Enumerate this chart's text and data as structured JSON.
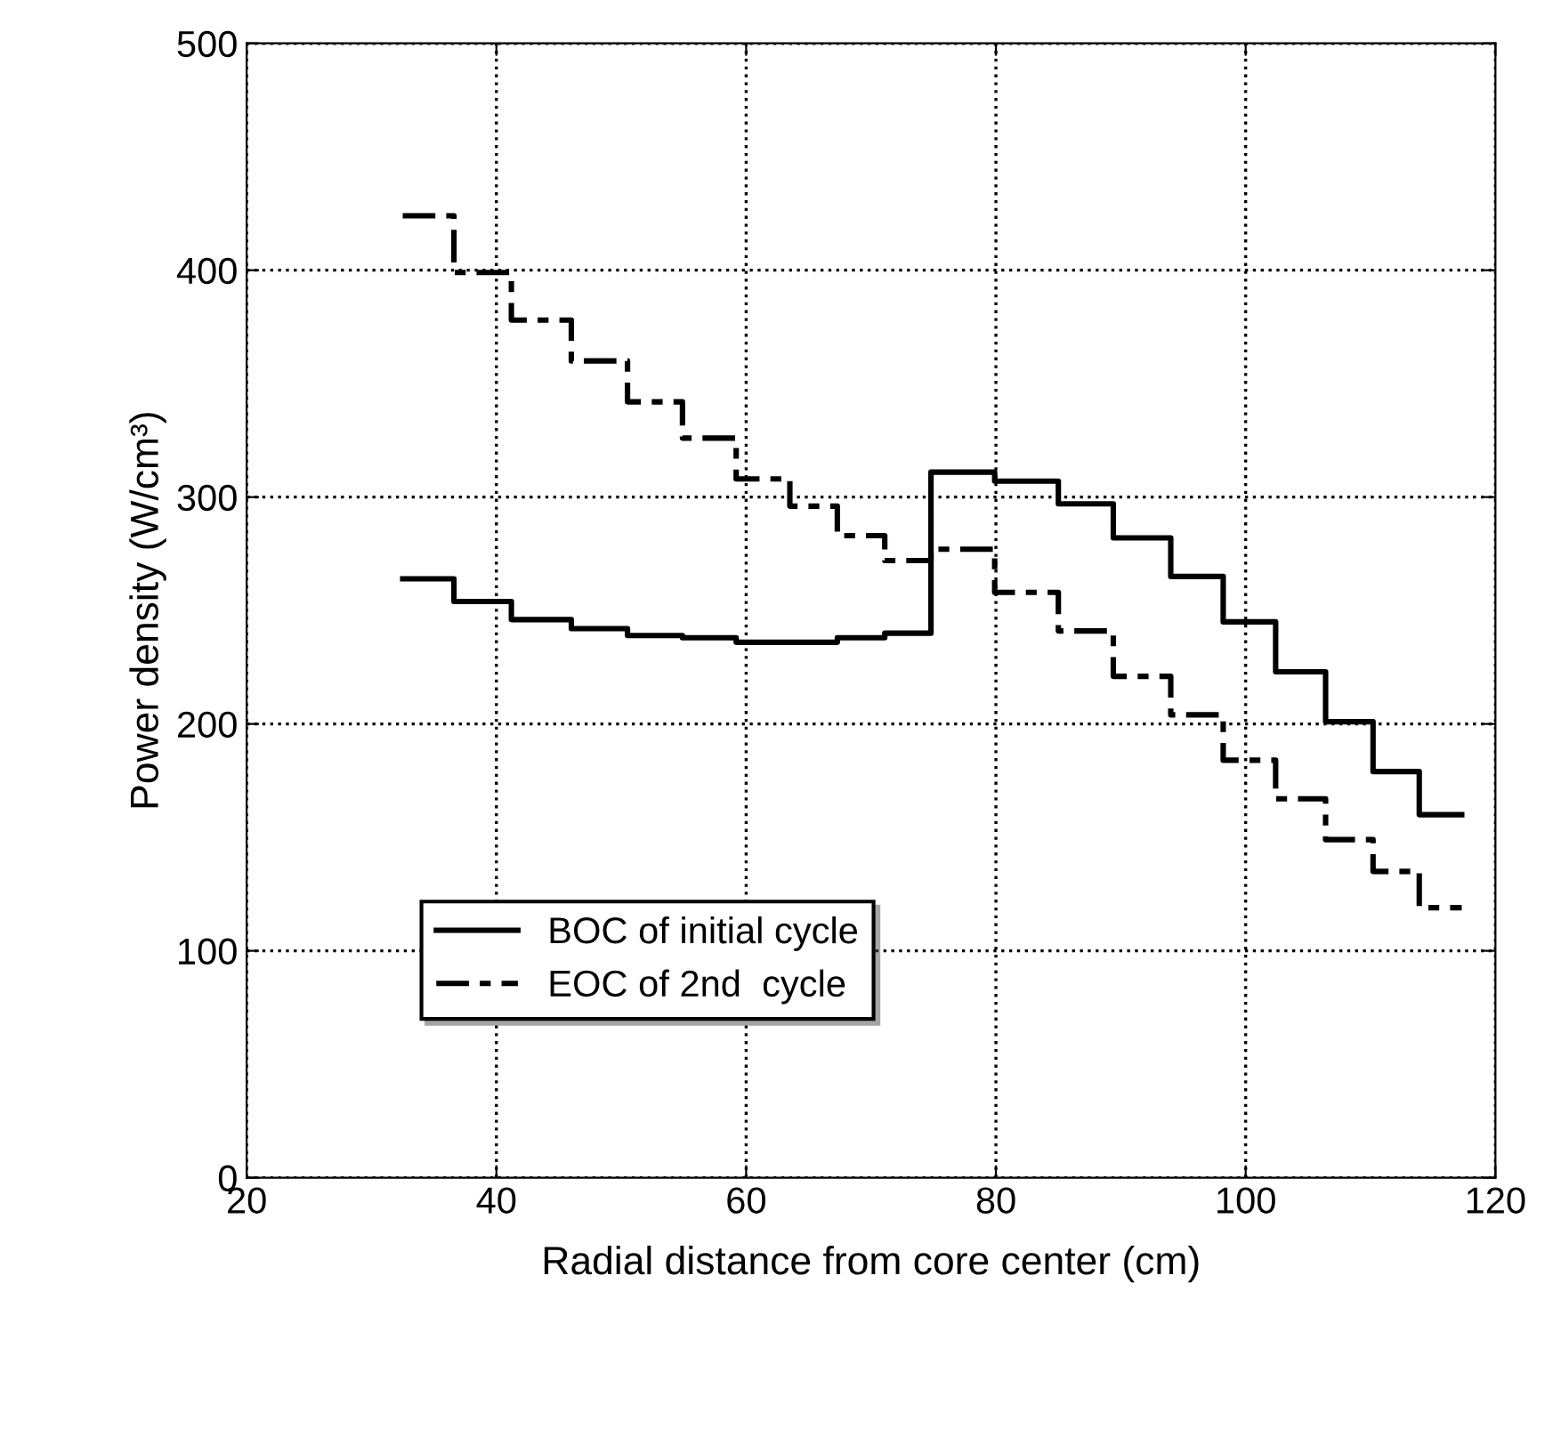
{
  "chart_data": {
    "type": "step",
    "xlabel": "Radial distance from core center (cm)",
    "ylabel": "Power density (W/cm³)",
    "xlim": [
      20,
      120
    ],
    "xticks": [
      20,
      40,
      60,
      80,
      100,
      120
    ],
    "ylim": [
      0,
      500
    ],
    "yticks": [
      0,
      100,
      200,
      300,
      400,
      500
    ],
    "grid": true,
    "legend": "bottom left",
    "marker": "none",
    "series": [
      {
        "name": "BOC of initial cycle",
        "color": "#000000",
        "line_style": "solid",
        "x": [
          32.5,
          36.6,
          41.2,
          46,
          50.5,
          54.9,
          59.2,
          63.5,
          67.3,
          71.1,
          74.8,
          79.9,
          85,
          89.4,
          94,
          98.2,
          102.4,
          106.4,
          110.2,
          113.9,
          117.3
        ],
        "values": [
          264,
          254,
          246,
          242,
          239,
          238,
          236,
          236,
          238,
          240,
          311,
          307,
          297,
          282,
          265,
          245,
          223,
          201,
          179,
          160,
          160
        ]
      },
      {
        "name": "EOC of 2nd  cycle",
        "color": "#000000",
        "line_style": "dashed",
        "x": [
          32.5,
          36.6,
          41.2,
          46,
          50.5,
          54.9,
          59.2,
          63.5,
          67.3,
          71.1,
          74.8,
          79.9,
          85,
          89.4,
          94,
          98.2,
          102.4,
          106.4,
          110.2,
          113.9,
          117.3
        ],
        "values": [
          424,
          399,
          378,
          360,
          342,
          326,
          308,
          296,
          283,
          272,
          277,
          258,
          241,
          221,
          204,
          184,
          167,
          149,
          135,
          119,
          119
        ]
      }
    ]
  }
}
